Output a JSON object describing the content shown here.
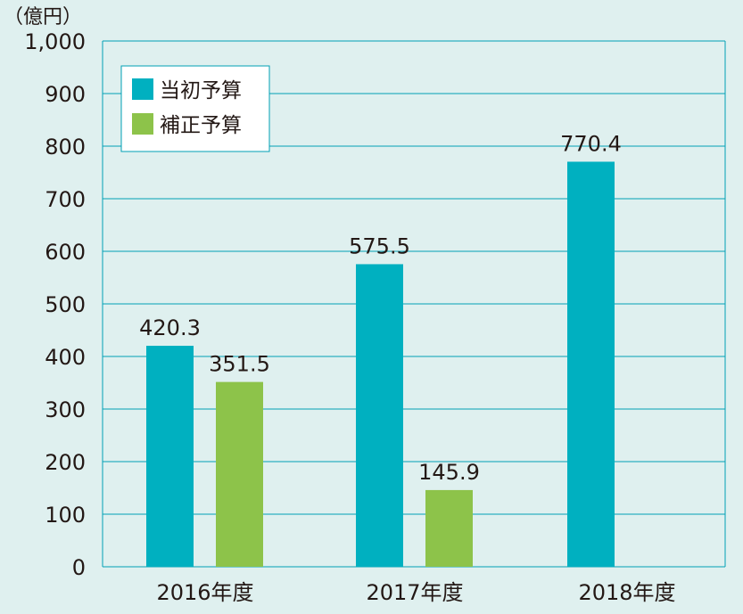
{
  "chart_data": {
    "type": "bar",
    "unit_label": "（億円）",
    "categories": [
      "2016年度",
      "2017年度",
      "2018年度"
    ],
    "series": [
      {
        "name": "当初予算",
        "values": [
          420.3,
          575.5,
          770.4
        ],
        "labels": [
          "420.3",
          "575.5",
          "770.4"
        ],
        "color": "#00b0c0"
      },
      {
        "name": "補正予算",
        "values": [
          351.5,
          145.9,
          null
        ],
        "labels": [
          "351.5",
          "145.9",
          ""
        ],
        "color": "#8dc34a"
      }
    ],
    "yticks": [
      "0",
      "100",
      "200",
      "300",
      "400",
      "500",
      "600",
      "700",
      "800",
      "900",
      "1,000"
    ],
    "ylim": [
      0,
      1000
    ],
    "grid": true,
    "legend_position": "top-left"
  },
  "colors": {
    "background": "#dff0ef",
    "grid": "#00a0b5",
    "text": "#231815"
  }
}
